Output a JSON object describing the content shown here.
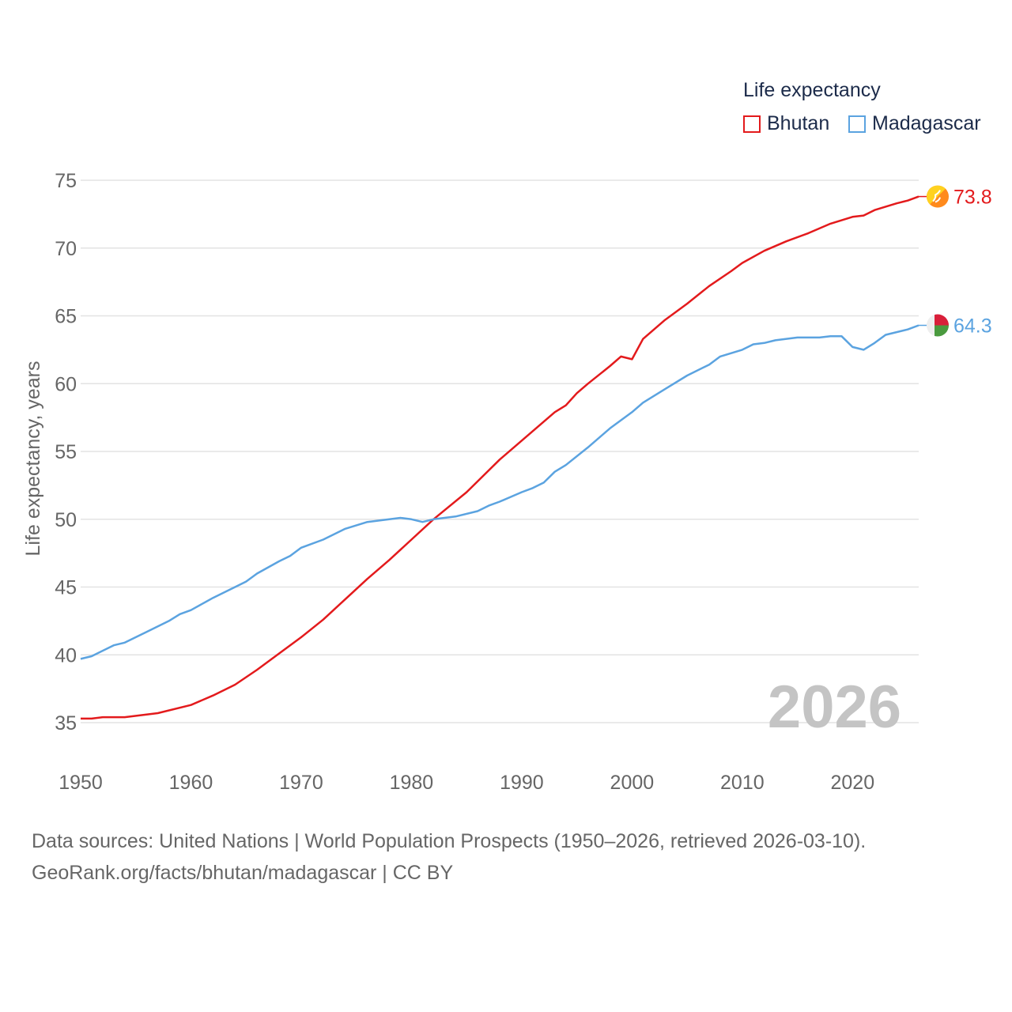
{
  "legend": {
    "title": "Life expectancy",
    "items": [
      {
        "label": "Bhutan",
        "color": "#e31a1c"
      },
      {
        "label": "Madagascar",
        "color": "#5ba3e0"
      }
    ]
  },
  "year_label": "2026",
  "source": {
    "line1": "Data sources: United Nations | World Population Prospects (1950–2026, retrieved 2026-03-10).",
    "line2": "GeoRank.org/facts/bhutan/madagascar | CC BY"
  },
  "chart_data": {
    "type": "line",
    "title": "Life expectancy",
    "xlabel": "",
    "ylabel": "Life expectancy, years",
    "xlim": [
      1950,
      2026
    ],
    "ylim": [
      32,
      75
    ],
    "x_ticks": [
      1950,
      1960,
      1970,
      1980,
      1990,
      2000,
      2010,
      2020
    ],
    "y_ticks": [
      35,
      40,
      45,
      50,
      55,
      60,
      65,
      70,
      75
    ],
    "grid": true,
    "series": [
      {
        "name": "Bhutan",
        "color": "#e31a1c",
        "end_label": "73.8",
        "flag_icon": "bhutan-flag-icon",
        "points": [
          [
            1950,
            35.3
          ],
          [
            1951,
            35.3
          ],
          [
            1952,
            35.4
          ],
          [
            1954,
            35.4
          ],
          [
            1957,
            35.7
          ],
          [
            1960,
            36.3
          ],
          [
            1962,
            37.0
          ],
          [
            1964,
            37.8
          ],
          [
            1966,
            38.9
          ],
          [
            1968,
            40.1
          ],
          [
            1970,
            41.3
          ],
          [
            1972,
            42.6
          ],
          [
            1974,
            44.1
          ],
          [
            1976,
            45.6
          ],
          [
            1978,
            47.0
          ],
          [
            1980,
            48.5
          ],
          [
            1982,
            50.0
          ],
          [
            1985,
            52.0
          ],
          [
            1988,
            54.4
          ],
          [
            1990,
            55.8
          ],
          [
            1993,
            57.9
          ],
          [
            1994,
            58.4
          ],
          [
            1995,
            59.3
          ],
          [
            1996,
            60.0
          ],
          [
            1998,
            61.3
          ],
          [
            1999,
            62.0
          ],
          [
            2000,
            61.8
          ],
          [
            2001,
            63.3
          ],
          [
            2003,
            64.7
          ],
          [
            2005,
            65.9
          ],
          [
            2007,
            67.2
          ],
          [
            2009,
            68.3
          ],
          [
            2010,
            68.9
          ],
          [
            2012,
            69.8
          ],
          [
            2014,
            70.5
          ],
          [
            2016,
            71.1
          ],
          [
            2018,
            71.8
          ],
          [
            2020,
            72.3
          ],
          [
            2021,
            72.4
          ],
          [
            2022,
            72.8
          ],
          [
            2024,
            73.3
          ],
          [
            2025,
            73.5
          ],
          [
            2026,
            73.8
          ]
        ]
      },
      {
        "name": "Madagascar",
        "color": "#5ba3e0",
        "end_label": "64.3",
        "flag_icon": "madagascar-flag-icon",
        "points": [
          [
            1950,
            39.7
          ],
          [
            1951,
            39.9
          ],
          [
            1953,
            40.7
          ],
          [
            1954,
            40.9
          ],
          [
            1956,
            41.7
          ],
          [
            1958,
            42.5
          ],
          [
            1959,
            43.0
          ],
          [
            1960,
            43.3
          ],
          [
            1962,
            44.2
          ],
          [
            1964,
            45.0
          ],
          [
            1965,
            45.4
          ],
          [
            1966,
            46.0
          ],
          [
            1968,
            46.9
          ],
          [
            1969,
            47.3
          ],
          [
            1970,
            47.9
          ],
          [
            1972,
            48.5
          ],
          [
            1974,
            49.3
          ],
          [
            1976,
            49.8
          ],
          [
            1978,
            50.0
          ],
          [
            1979,
            50.1
          ],
          [
            1980,
            50.0
          ],
          [
            1981,
            49.8
          ],
          [
            1982,
            50.0
          ],
          [
            1984,
            50.2
          ],
          [
            1986,
            50.6
          ],
          [
            1987,
            51.0
          ],
          [
            1988,
            51.3
          ],
          [
            1990,
            52.0
          ],
          [
            1991,
            52.3
          ],
          [
            1992,
            52.7
          ],
          [
            1993,
            53.5
          ],
          [
            1994,
            54.0
          ],
          [
            1996,
            55.3
          ],
          [
            1998,
            56.7
          ],
          [
            2000,
            57.9
          ],
          [
            2001,
            58.6
          ],
          [
            2003,
            59.6
          ],
          [
            2005,
            60.6
          ],
          [
            2007,
            61.4
          ],
          [
            2008,
            62.0
          ],
          [
            2010,
            62.5
          ],
          [
            2011,
            62.9
          ],
          [
            2012,
            63.0
          ],
          [
            2013,
            63.2
          ],
          [
            2015,
            63.4
          ],
          [
            2017,
            63.4
          ],
          [
            2018,
            63.5
          ],
          [
            2019,
            63.5
          ],
          [
            2020,
            62.7
          ],
          [
            2021,
            62.5
          ],
          [
            2022,
            63.0
          ],
          [
            2023,
            63.6
          ],
          [
            2025,
            64.0
          ],
          [
            2026,
            64.3
          ]
        ]
      }
    ]
  }
}
